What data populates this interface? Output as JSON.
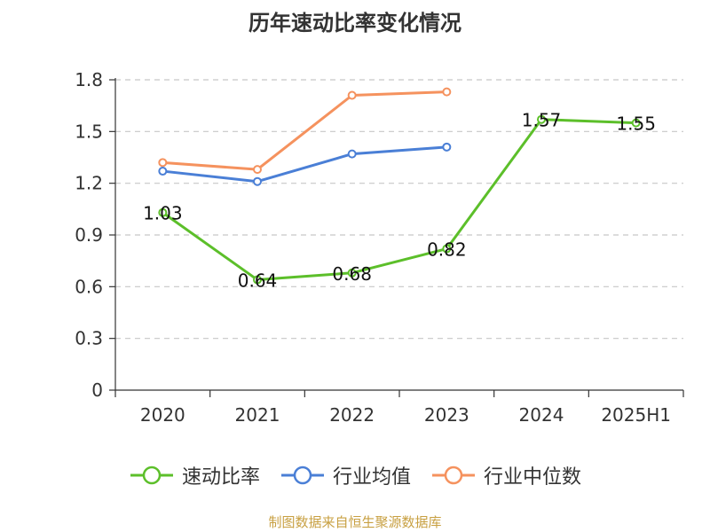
{
  "chart_data": {
    "type": "line",
    "title": "历年速动比率变化情况",
    "categories": [
      "2020",
      "2021",
      "2022",
      "2023",
      "2024",
      "2025H1"
    ],
    "ylim": [
      0,
      1.8
    ],
    "yticks": [
      "0",
      "0.3",
      "0.6",
      "0.9",
      "1.2",
      "1.5",
      "1.8"
    ],
    "grid": true,
    "legend_position": "bottom",
    "series": [
      {
        "name": "速动比率",
        "color": "#5cbf2a",
        "values": [
          1.03,
          0.64,
          0.68,
          0.82,
          1.57,
          1.55
        ],
        "labels": [
          "1.03",
          "0.64",
          "0.68",
          "0.82",
          "1.57",
          "1.55"
        ]
      },
      {
        "name": "行业均值",
        "color": "#4a7fd6",
        "values": [
          1.27,
          1.21,
          1.37,
          1.41,
          null,
          null
        ]
      },
      {
        "name": "行业中位数",
        "color": "#f5925e",
        "values": [
          1.32,
          1.28,
          1.71,
          1.73,
          null,
          null
        ]
      }
    ]
  },
  "source_note": "制图数据来自恒生聚源数据库"
}
